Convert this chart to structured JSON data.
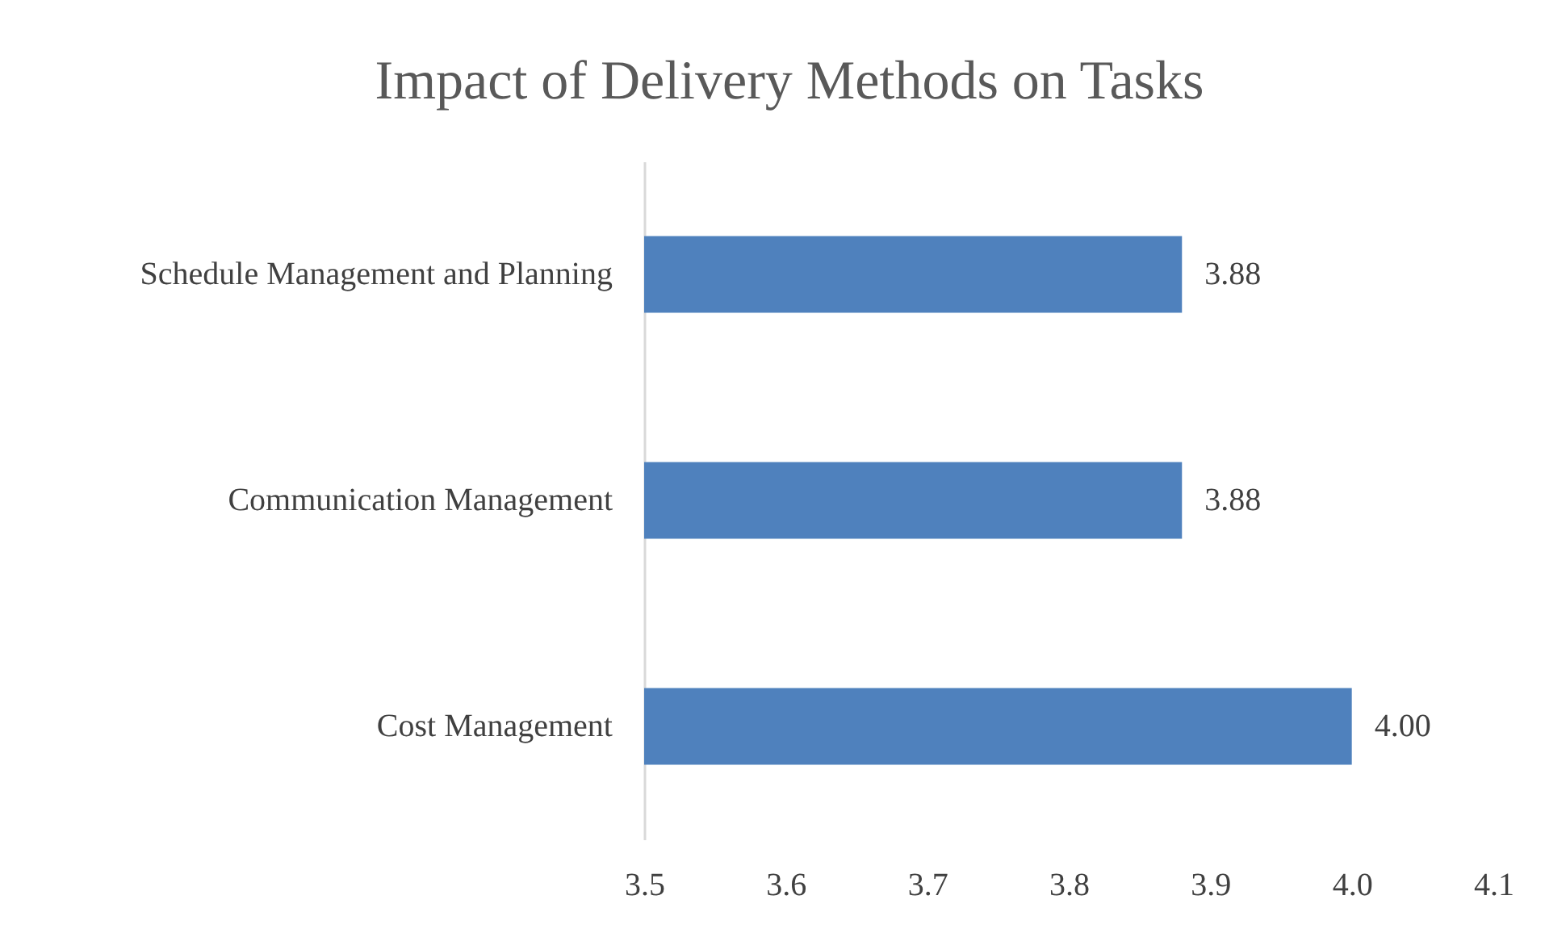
{
  "chart_data": {
    "type": "bar",
    "orientation": "horizontal",
    "title": "Impact of Delivery Methods on Tasks",
    "categories": [
      "Schedule Management and Planning",
      "Communication Management",
      "Cost Management"
    ],
    "values": [
      3.88,
      3.88,
      4.0
    ],
    "value_labels": [
      "3.88",
      "3.88",
      "4.00"
    ],
    "color": "#4f81bd",
    "xlim": [
      3.5,
      4.1
    ],
    "xticks": [
      3.5,
      3.6,
      3.7,
      3.8,
      3.9,
      {
        "value": 4.0,
        "label": "4.0"
      },
      4.1
    ],
    "grid": false
  }
}
